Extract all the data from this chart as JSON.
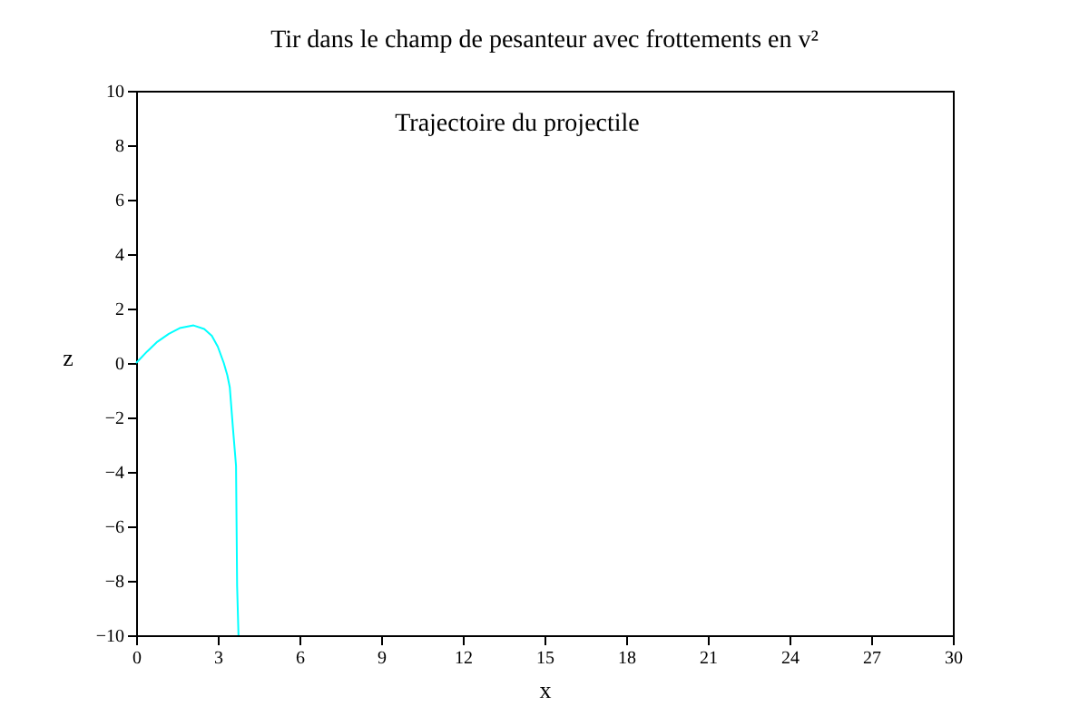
{
  "chart_data": {
    "type": "line",
    "title": "Tir dans le champ de pesanteur avec frottements en v²",
    "xlabel": "x",
    "ylabel": "z",
    "annotations": [
      "Trajectoire du projectile"
    ],
    "x": [
      0,
      0.4,
      0.78,
      1.2,
      1.6,
      2.11,
      2.5,
      2.78,
      3.0,
      3.22,
      3.35,
      3.44,
      3.56,
      3.67,
      3.71,
      3.76
    ],
    "series": [
      {
        "color": "#00ffff",
        "values": [
          0,
          0.42,
          0.78,
          1.07,
          1.28,
          1.38,
          1.25,
          1.0,
          0.6,
          0,
          -0.45,
          -0.89,
          -2.44,
          -3.78,
          -8.2,
          -10
        ]
      }
    ],
    "xlim": [
      0,
      30
    ],
    "xticks": [
      0,
      3,
      6,
      9,
      12,
      15,
      18,
      21,
      24,
      27,
      30
    ],
    "ylim": [
      -10,
      10
    ],
    "yticks": [
      -10,
      -8,
      -6,
      -4,
      -2,
      0,
      2,
      4,
      6,
      8,
      10
    ],
    "grid": false,
    "legend": false,
    "marker": "none",
    "line_style": "solid"
  }
}
